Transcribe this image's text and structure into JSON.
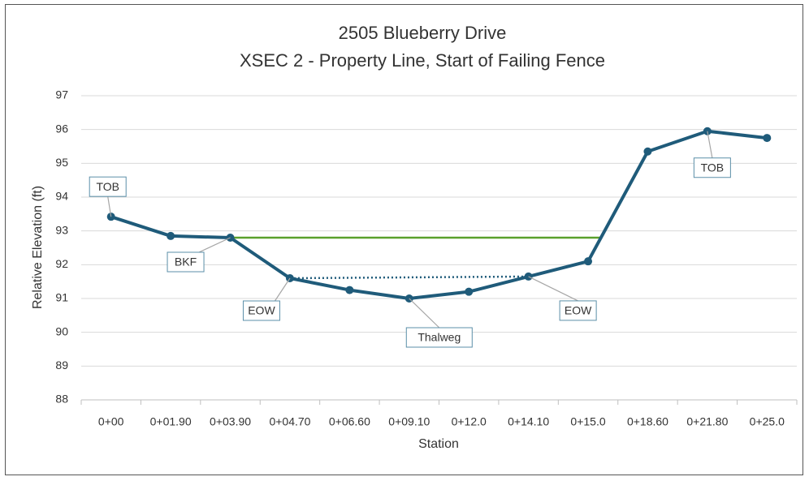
{
  "chart_data": {
    "type": "line",
    "title": "2505 Blueberry Drive",
    "subtitle": "XSEC 2 - Property Line, Start of Failing Fence",
    "x_label": "Station",
    "y_label": "Relative Elevation (ft)",
    "categories": [
      "0+00",
      "0+01.90",
      "0+03.90",
      "0+04.70",
      "0+06.60",
      "0+09.10",
      "0+12.0",
      "0+14.10",
      "0+15.0",
      "0+18.60",
      "0+21.80",
      "0+25.0"
    ],
    "series": [
      {
        "color": "#1f5b7a",
        "style": "solid",
        "markers": true,
        "values": [
          93.42,
          92.85,
          92.8,
          91.6,
          91.25,
          91.0,
          91.2,
          91.65,
          92.1,
          95.35,
          95.95,
          95.75
        ]
      },
      {
        "color": "#5aa02c",
        "style": "solid",
        "markers": false,
        "extend_to_series": 0,
        "values": [
          null,
          null,
          92.8,
          92.8,
          92.8,
          92.8,
          92.8,
          92.8,
          92.8,
          null,
          null,
          null
        ]
      },
      {
        "color": "#1f5b7a",
        "style": "dotted",
        "markers": false,
        "values": [
          null,
          null,
          null,
          91.6,
          91.6125,
          91.625,
          91.6375,
          91.65,
          null,
          null,
          null,
          null
        ]
      }
    ],
    "annotations": [
      {
        "text": "TOB",
        "point": 0
      },
      {
        "text": "BKF",
        "point": 2
      },
      {
        "text": "EOW",
        "point": 3
      },
      {
        "text": "Thalweg",
        "point": 5
      },
      {
        "text": "EOW",
        "point": 7
      },
      {
        "text": "TOB",
        "point": 10
      }
    ],
    "ylim": [
      88,
      97
    ],
    "yticks": [
      88,
      89,
      90,
      91,
      92,
      93,
      94,
      95,
      96,
      97
    ],
    "grid": true
  }
}
